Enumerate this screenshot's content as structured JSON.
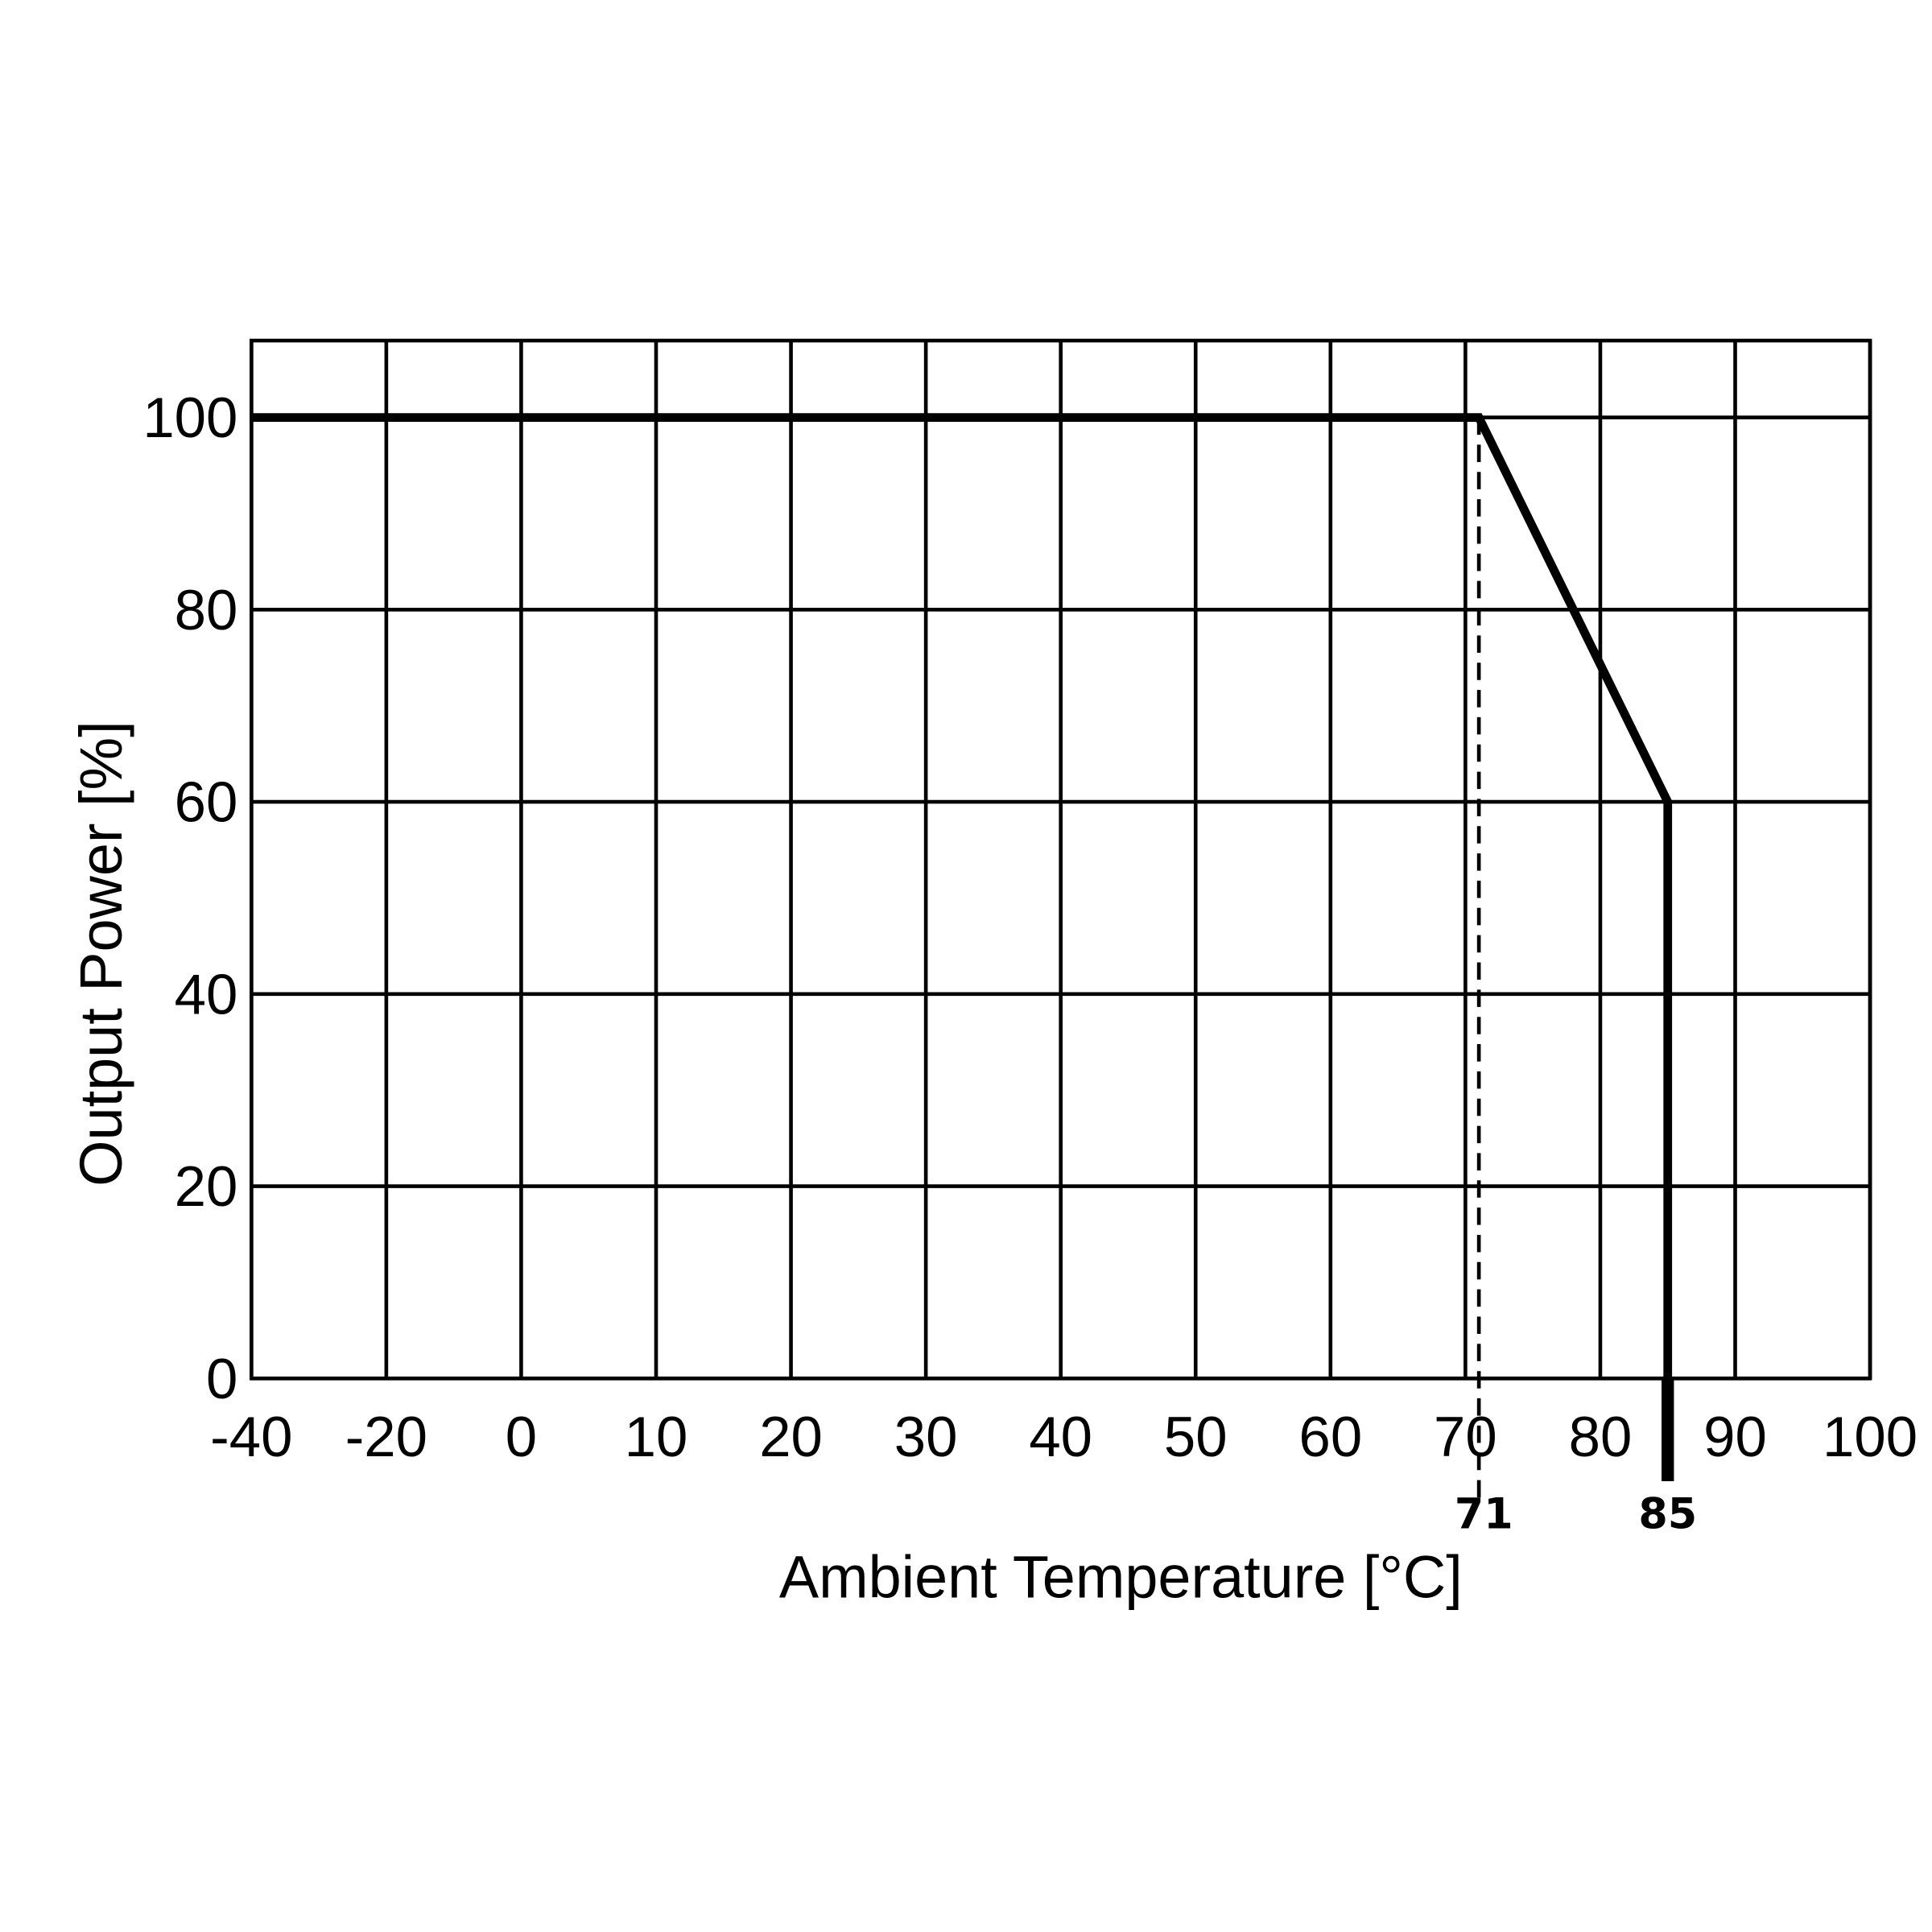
{
  "chart_data": {
    "type": "line",
    "x_label": "Ambient Temperature [°C]",
    "y_label": "Output Power [%]",
    "xlim": [
      -40,
      100
    ],
    "xticks": [
      -40,
      -20,
      0,
      10,
      20,
      30,
      40,
      50,
      60,
      70,
      80,
      90,
      100
    ],
    "ylim": [
      0,
      108
    ],
    "yticks": [
      0,
      20,
      40,
      60,
      80,
      100
    ],
    "grid": true,
    "x_markers": [
      71,
      85
    ],
    "series": [
      {
        "color": "#000000",
        "x": [
          -40,
          71,
          85,
          85
        ],
        "values": [
          100,
          100,
          60,
          0
        ]
      }
    ]
  }
}
